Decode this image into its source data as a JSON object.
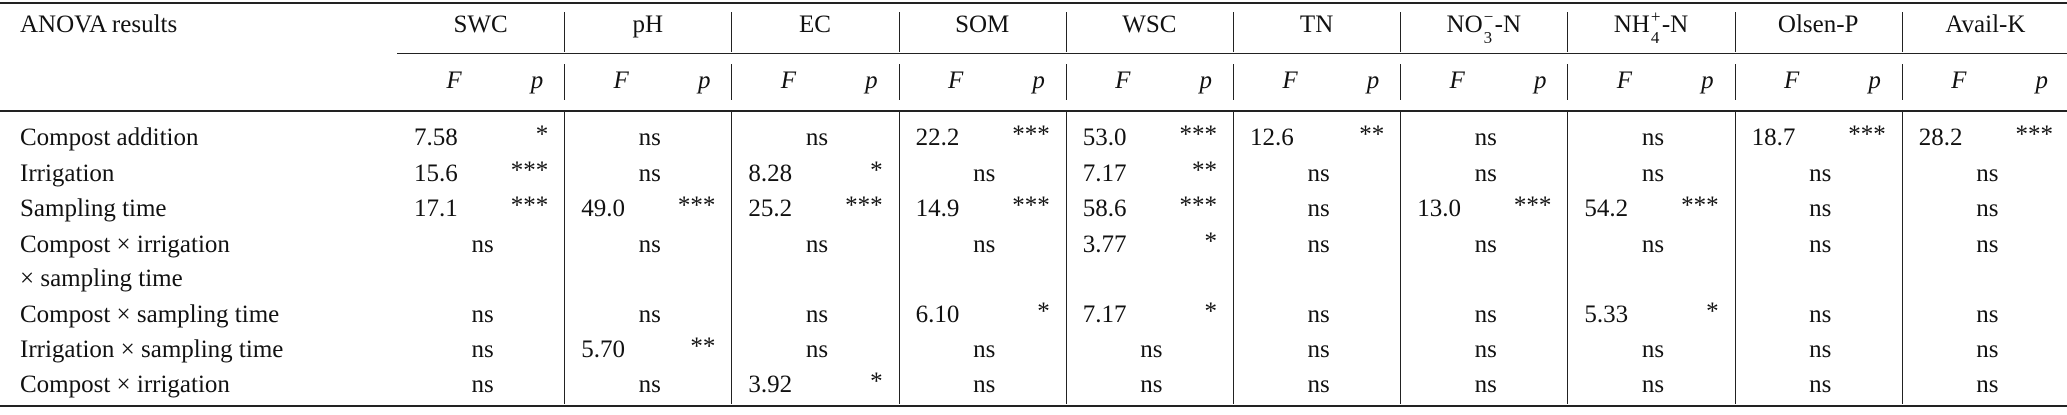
{
  "table": {
    "corner_label": "ANOVA results",
    "columns": [
      {
        "label": "SWC"
      },
      {
        "label": "pH"
      },
      {
        "label": "EC"
      },
      {
        "label": "SOM"
      },
      {
        "label": "WSC"
      },
      {
        "label": "TN"
      },
      {
        "base": "NO",
        "sup": "−",
        "sub": "3",
        "tail": "-N"
      },
      {
        "base": "NH",
        "sup": "+",
        "sub": "4",
        "tail": "-N"
      },
      {
        "label": "Olsen-P"
      },
      {
        "label": "Avail-K"
      }
    ],
    "sub_headers": {
      "f": "F",
      "p": "p"
    },
    "rows": [
      {
        "label": "Compost addition",
        "cells": [
          {
            "f": "7.58",
            "p": "*"
          },
          {
            "ns": "ns"
          },
          {
            "ns": "ns"
          },
          {
            "f": "22.2",
            "p": "***"
          },
          {
            "f": "53.0",
            "p": "***"
          },
          {
            "f": "12.6",
            "p": "**"
          },
          {
            "ns": "ns"
          },
          {
            "ns": "ns"
          },
          {
            "f": "18.7",
            "p": "***"
          },
          {
            "f": "28.2",
            "p": "***"
          }
        ]
      },
      {
        "label": "Irrigation",
        "cells": [
          {
            "f": "15.6",
            "p": "***"
          },
          {
            "ns": "ns"
          },
          {
            "f": "8.28",
            "p": "*"
          },
          {
            "ns": "ns"
          },
          {
            "f": "7.17",
            "p": "**"
          },
          {
            "ns": "ns"
          },
          {
            "ns": "ns"
          },
          {
            "ns": "ns"
          },
          {
            "ns": "ns"
          },
          {
            "ns": "ns"
          }
        ]
      },
      {
        "label": "Sampling time",
        "cells": [
          {
            "f": "17.1",
            "p": "***"
          },
          {
            "f": "49.0",
            "p": "***"
          },
          {
            "f": "25.2",
            "p": "***"
          },
          {
            "f": "14.9",
            "p": "***"
          },
          {
            "f": "58.6",
            "p": "***"
          },
          {
            "ns": "ns"
          },
          {
            "f": "13.0",
            "p": "***"
          },
          {
            "f": "54.2",
            "p": "***"
          },
          {
            "ns": "ns"
          },
          {
            "ns": "ns"
          }
        ]
      },
      {
        "label": "Compost × irrigation",
        "label2": "× sampling time",
        "cells": [
          {
            "ns": "ns"
          },
          {
            "ns": "ns"
          },
          {
            "ns": "ns"
          },
          {
            "ns": "ns"
          },
          {
            "f": "3.77",
            "p": "*"
          },
          {
            "ns": "ns"
          },
          {
            "ns": "ns"
          },
          {
            "ns": "ns"
          },
          {
            "ns": "ns"
          },
          {
            "ns": "ns"
          }
        ]
      },
      {
        "label": "Compost × sampling time",
        "cells": [
          {
            "ns": "ns"
          },
          {
            "ns": "ns"
          },
          {
            "ns": "ns"
          },
          {
            "f": "6.10",
            "p": "*"
          },
          {
            "f": "7.17",
            "p": "*"
          },
          {
            "ns": "ns"
          },
          {
            "ns": "ns"
          },
          {
            "f": "5.33",
            "p": "*"
          },
          {
            "ns": "ns"
          },
          {
            "ns": "ns"
          }
        ]
      },
      {
        "label": "Irrigation × sampling time",
        "cells": [
          {
            "ns": "ns"
          },
          {
            "f": "5.70",
            "p": "**"
          },
          {
            "ns": "ns"
          },
          {
            "ns": "ns"
          },
          {
            "ns": "ns"
          },
          {
            "ns": "ns"
          },
          {
            "ns": "ns"
          },
          {
            "ns": "ns"
          },
          {
            "ns": "ns"
          },
          {
            "ns": "ns"
          }
        ]
      },
      {
        "label": "Compost × irrigation",
        "cells": [
          {
            "ns": "ns"
          },
          {
            "ns": "ns"
          },
          {
            "f": "3.92",
            "p": "*"
          },
          {
            "ns": "ns"
          },
          {
            "ns": "ns"
          },
          {
            "ns": "ns"
          },
          {
            "ns": "ns"
          },
          {
            "ns": "ns"
          },
          {
            "ns": "ns"
          },
          {
            "ns": "ns"
          }
        ]
      }
    ]
  }
}
